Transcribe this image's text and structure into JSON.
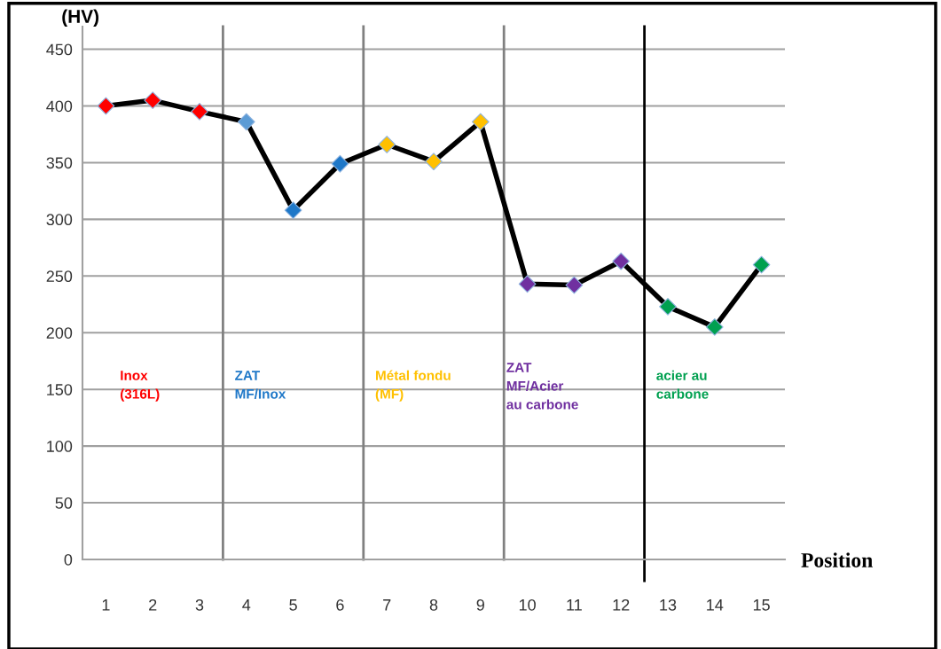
{
  "chart_data": {
    "type": "line",
    "xlabel": "Position",
    "ylabel": "(HV)",
    "x": [
      1,
      2,
      3,
      4,
      5,
      6,
      7,
      8,
      9,
      10,
      11,
      12,
      13,
      14,
      15
    ],
    "series": [
      {
        "color": "#000000",
        "values": [
          400,
          405,
          395,
          386,
          308,
          349,
          366,
          351,
          386,
          243,
          242,
          263,
          223,
          205,
          260
        ],
        "colors": [
          "#ff0000",
          "#ff0000",
          "#ff0000",
          "#5b9bd5",
          "#1f78c8",
          "#1f78c8",
          "#ffc000",
          "#ffc000",
          "#ffc000",
          "#7030a0",
          "#7030a0",
          "#7030a0",
          "#00a050",
          "#00a050",
          "#00a050"
        ]
      }
    ],
    "marker": "diamond",
    "line_style": "solid",
    "grid": "y",
    "xlim": [
      0.5,
      15.5
    ],
    "xticks": [
      1,
      2,
      3,
      4,
      5,
      6,
      7,
      8,
      9,
      10,
      11,
      12,
      13,
      14,
      15
    ],
    "ylim": [
      0,
      470
    ],
    "yticks": [
      0,
      50,
      100,
      150,
      200,
      250,
      300,
      350,
      400,
      450
    ],
    "ref_lines": [
      {
        "axis": "x",
        "value": 3.5,
        "color": "#808080"
      },
      {
        "axis": "x",
        "value": 6.5,
        "color": "#808080"
      },
      {
        "axis": "x",
        "value": 9.5,
        "color": "#808080"
      },
      {
        "axis": "x",
        "value": 12.5,
        "color": "#000000"
      }
    ],
    "annotations": [
      "Inox\n(316L)",
      "ZAT\nMF/Inox",
      "Métal fondu\n(MF)",
      "ZAT\nMF/Acier\nau carbone",
      "acier au\ncarbone"
    ]
  }
}
